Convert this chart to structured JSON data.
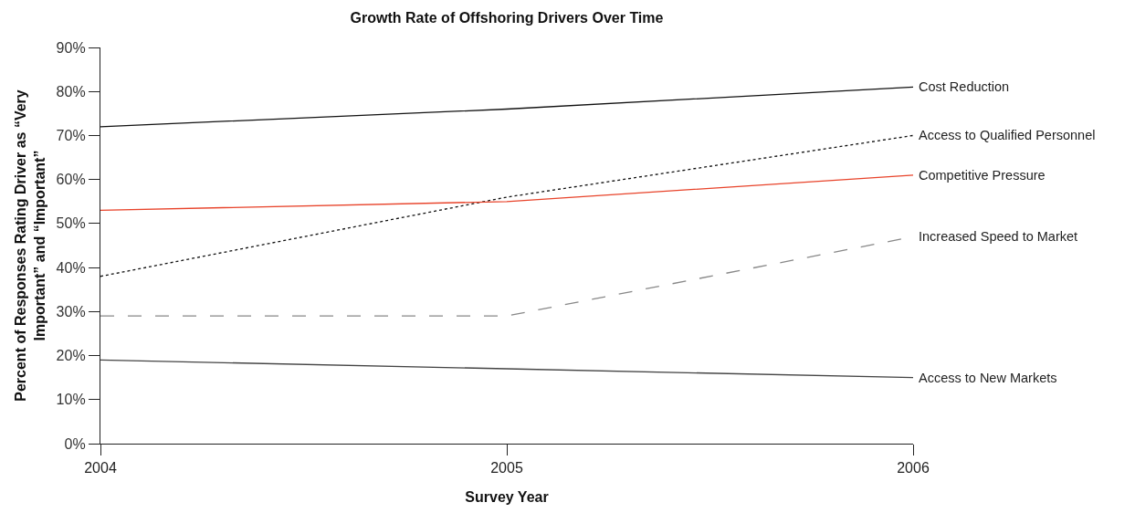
{
  "chart_data": {
    "type": "line",
    "title": "Growth Rate of Offshoring Drivers Over Time",
    "xlabel": "Survey Year",
    "ylabel": "Percent of Responses Rating Driver as “Very Important” and “Important”",
    "x": [
      2004,
      2005,
      2006
    ],
    "series": [
      {
        "name": "Cost Reduction",
        "color": "#111111",
        "line_style": "solid",
        "values": [
          72,
          76,
          81
        ]
      },
      {
        "name": "Access to Qualified Personnel",
        "color": "#111111",
        "line_style": "dotted",
        "values": [
          38,
          56,
          70
        ]
      },
      {
        "name": "Competitive Pressure",
        "color": "#e8432a",
        "line_style": "solid",
        "values": [
          53,
          55,
          61
        ]
      },
      {
        "name": "Increased Speed to Market",
        "color": "#888888",
        "line_style": "dashed",
        "values": [
          29,
          29,
          47
        ]
      },
      {
        "name": "Access to New Markets",
        "color": "#444444",
        "line_style": "solid",
        "values": [
          19,
          17,
          15
        ]
      }
    ],
    "xlim": [
      2004,
      2006
    ],
    "xticks": [
      2004,
      2005,
      2006
    ],
    "ylim": [
      0,
      90
    ],
    "yticks": [
      {
        "value": 0,
        "label": "0%"
      },
      {
        "value": 10,
        "label": "10%"
      },
      {
        "value": 20,
        "label": "20%"
      },
      {
        "value": 30,
        "label": "30%"
      },
      {
        "value": 40,
        "label": "40%"
      },
      {
        "value": 50,
        "label": "50%"
      },
      {
        "value": 60,
        "label": "60%"
      },
      {
        "value": 70,
        "label": "70%"
      },
      {
        "value": 80,
        "label": "80%"
      },
      {
        "value": 90,
        "label": "90%"
      }
    ],
    "legend": false,
    "marker": "none"
  }
}
